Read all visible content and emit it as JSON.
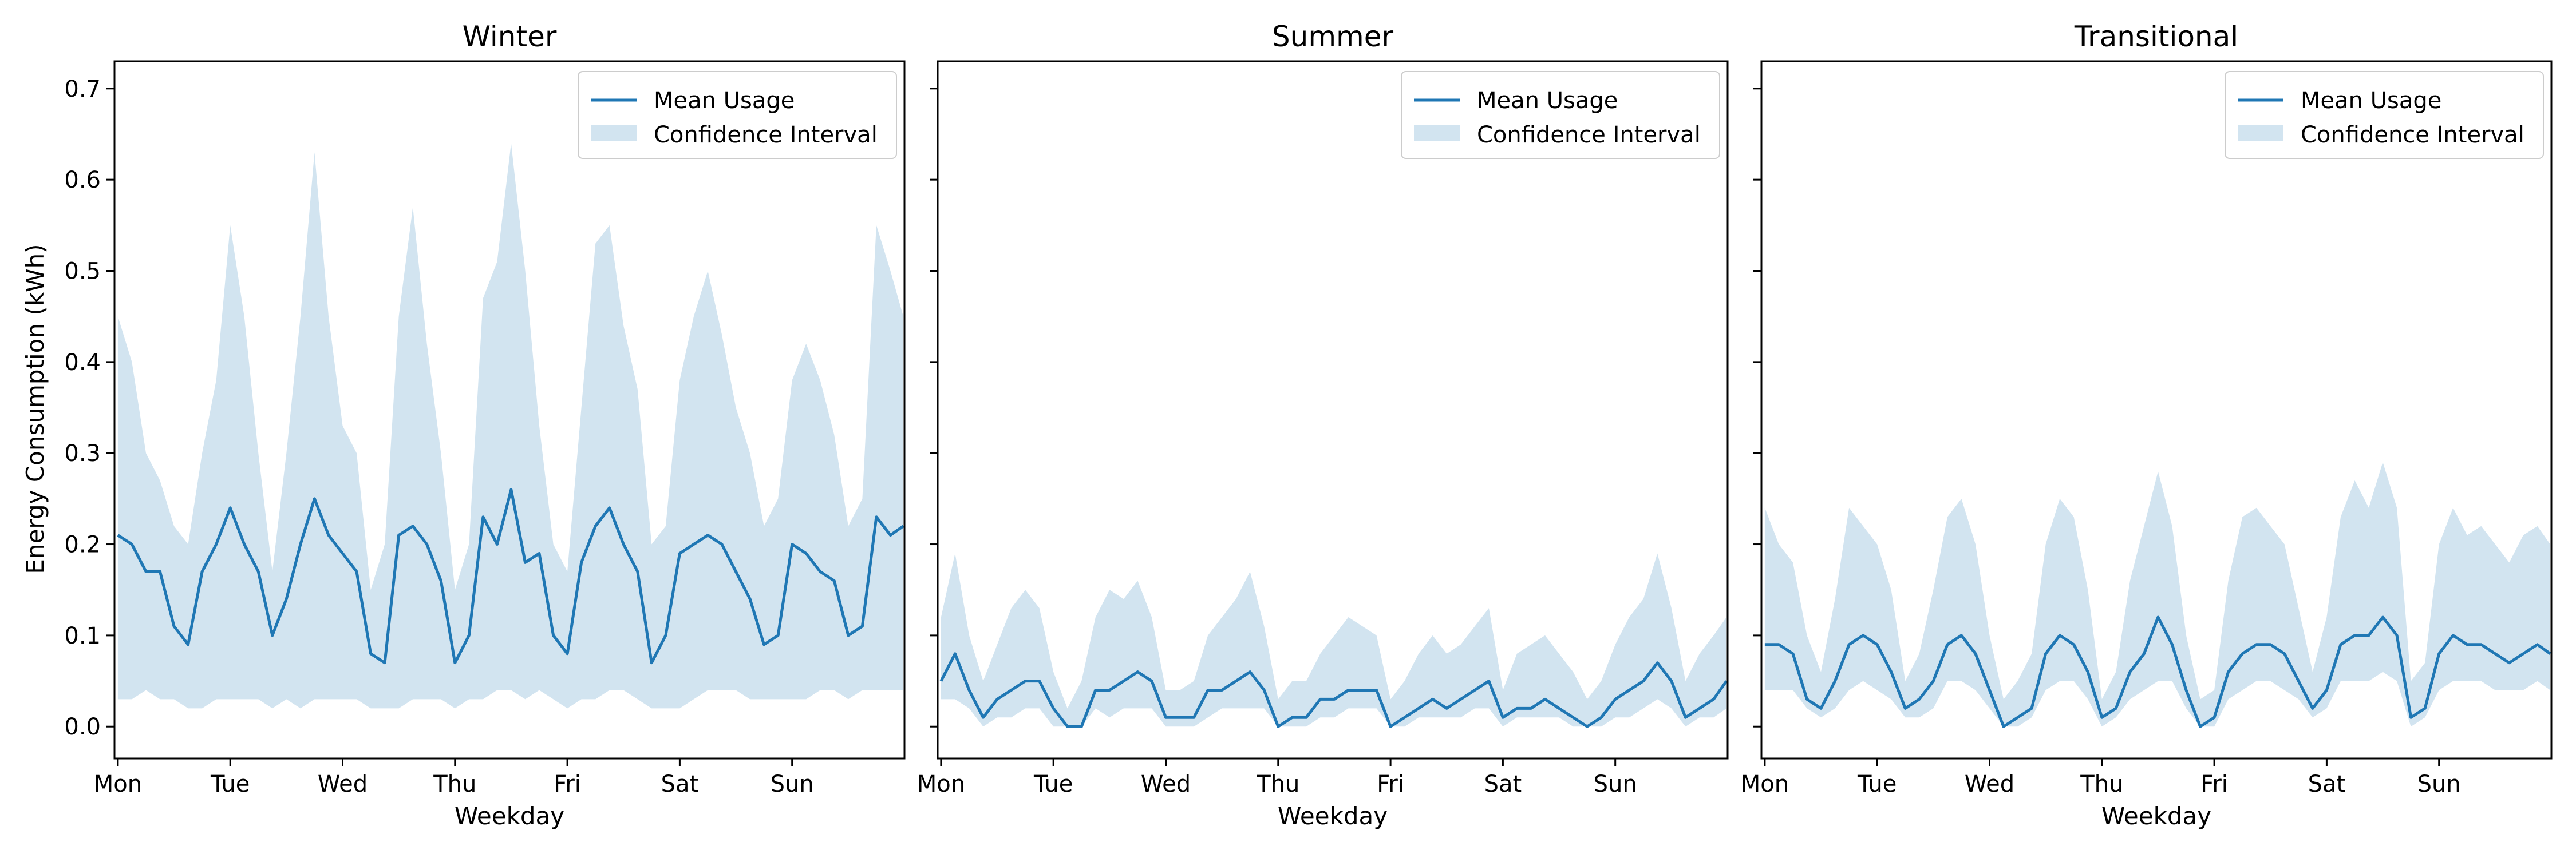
{
  "colors": {
    "line": "#1f77b4",
    "band": "#1f77b4",
    "band_opacity": 0.2,
    "axes": "#000000",
    "background": "#ffffff"
  },
  "shared_y_label": "Energy Consumption (kWh)",
  "chart_data": [
    {
      "type": "line",
      "title": "Winter",
      "xlabel": "Weekday",
      "ylabel": "Energy Consumption (kWh)",
      "xlim": [
        -0.03,
        7.0
      ],
      "ylim": [
        -0.035,
        0.73
      ],
      "yticks": [
        0.0,
        0.1,
        0.2,
        0.3,
        0.4,
        0.5,
        0.6,
        0.7
      ],
      "ytick_labels": [
        "0.0",
        "0.1",
        "0.2",
        "0.3",
        "0.4",
        "0.5",
        "0.6",
        "0.7"
      ],
      "xticks": [
        0,
        1,
        2,
        3,
        4,
        5,
        6
      ],
      "xtick_labels": [
        "Mon",
        "Tue",
        "Wed",
        "Thu",
        "Fri",
        "Sat",
        "Sun"
      ],
      "grid": false,
      "legend": {
        "placement": "upper-right",
        "entries": [
          "Mean Usage",
          "Confidence Interval"
        ]
      },
      "x": [
        0.0,
        0.125,
        0.25,
        0.375,
        0.5,
        0.625,
        0.75,
        0.875,
        1.0,
        1.125,
        1.25,
        1.375,
        1.5,
        1.625,
        1.75,
        1.875,
        2.0,
        2.125,
        2.25,
        2.375,
        2.5,
        2.625,
        2.75,
        2.875,
        3.0,
        3.125,
        3.25,
        3.375,
        3.5,
        3.625,
        3.75,
        3.875,
        4.0,
        4.125,
        4.25,
        4.375,
        4.5,
        4.625,
        4.75,
        4.875,
        5.0,
        5.125,
        5.25,
        5.375,
        5.5,
        5.625,
        5.75,
        5.875,
        6.0,
        6.125,
        6.25,
        6.375,
        6.5,
        6.625,
        6.75,
        6.875,
        6.99
      ],
      "series": [
        {
          "name": "Mean Usage",
          "values": [
            0.21,
            0.2,
            0.17,
            0.17,
            0.11,
            0.09,
            0.17,
            0.2,
            0.24,
            0.2,
            0.17,
            0.1,
            0.14,
            0.2,
            0.25,
            0.21,
            0.19,
            0.17,
            0.08,
            0.07,
            0.21,
            0.22,
            0.2,
            0.16,
            0.07,
            0.1,
            0.23,
            0.2,
            0.26,
            0.18,
            0.19,
            0.1,
            0.08,
            0.18,
            0.22,
            0.24,
            0.2,
            0.17,
            0.07,
            0.1,
            0.19,
            0.2,
            0.21,
            0.2,
            0.17,
            0.14,
            0.09,
            0.1,
            0.2,
            0.19,
            0.17,
            0.16,
            0.1,
            0.11,
            0.23,
            0.21,
            0.22
          ]
        },
        {
          "name": "Confidence Interval",
          "lower": [
            0.03,
            0.03,
            0.04,
            0.03,
            0.03,
            0.02,
            0.02,
            0.03,
            0.03,
            0.03,
            0.03,
            0.02,
            0.03,
            0.02,
            0.03,
            0.03,
            0.03,
            0.03,
            0.02,
            0.02,
            0.02,
            0.03,
            0.03,
            0.03,
            0.02,
            0.03,
            0.03,
            0.04,
            0.04,
            0.03,
            0.04,
            0.03,
            0.02,
            0.03,
            0.03,
            0.04,
            0.04,
            0.03,
            0.02,
            0.02,
            0.02,
            0.03,
            0.04,
            0.04,
            0.04,
            0.03,
            0.03,
            0.03,
            0.03,
            0.03,
            0.04,
            0.04,
            0.03,
            0.04,
            0.04,
            0.04,
            0.04
          ],
          "upper": [
            0.45,
            0.4,
            0.3,
            0.27,
            0.22,
            0.2,
            0.3,
            0.38,
            0.55,
            0.45,
            0.3,
            0.17,
            0.3,
            0.45,
            0.63,
            0.45,
            0.33,
            0.3,
            0.15,
            0.2,
            0.45,
            0.57,
            0.42,
            0.3,
            0.15,
            0.2,
            0.47,
            0.51,
            0.64,
            0.5,
            0.33,
            0.2,
            0.17,
            0.35,
            0.53,
            0.55,
            0.44,
            0.37,
            0.2,
            0.22,
            0.38,
            0.45,
            0.5,
            0.43,
            0.35,
            0.3,
            0.22,
            0.25,
            0.38,
            0.42,
            0.38,
            0.32,
            0.22,
            0.25,
            0.55,
            0.5,
            0.45
          ]
        }
      ]
    },
    {
      "type": "line",
      "title": "Summer",
      "xlabel": "Weekday",
      "ylabel": "",
      "xlim": [
        -0.03,
        7.0
      ],
      "ylim": [
        -0.035,
        0.73
      ],
      "yticks": [
        0.0,
        0.1,
        0.2,
        0.3,
        0.4,
        0.5,
        0.6,
        0.7
      ],
      "ytick_labels": [],
      "xticks": [
        0,
        1,
        2,
        3,
        4,
        5,
        6
      ],
      "xtick_labels": [
        "Mon",
        "Tue",
        "Wed",
        "Thu",
        "Fri",
        "Sat",
        "Sun"
      ],
      "grid": false,
      "legend": {
        "placement": "upper-right",
        "entries": [
          "Mean Usage",
          "Confidence Interval"
        ]
      },
      "x": [
        0.0,
        0.125,
        0.25,
        0.375,
        0.5,
        0.625,
        0.75,
        0.875,
        1.0,
        1.125,
        1.25,
        1.375,
        1.5,
        1.625,
        1.75,
        1.875,
        2.0,
        2.125,
        2.25,
        2.375,
        2.5,
        2.625,
        2.75,
        2.875,
        3.0,
        3.125,
        3.25,
        3.375,
        3.5,
        3.625,
        3.75,
        3.875,
        4.0,
        4.125,
        4.25,
        4.375,
        4.5,
        4.625,
        4.75,
        4.875,
        5.0,
        5.125,
        5.25,
        5.375,
        5.5,
        5.625,
        5.75,
        5.875,
        6.0,
        6.125,
        6.25,
        6.375,
        6.5,
        6.625,
        6.75,
        6.875,
        6.99
      ],
      "series": [
        {
          "name": "Mean Usage",
          "values": [
            0.05,
            0.08,
            0.04,
            0.01,
            0.03,
            0.04,
            0.05,
            0.05,
            0.02,
            0.0,
            0.0,
            0.04,
            0.04,
            0.05,
            0.06,
            0.05,
            0.01,
            0.01,
            0.01,
            0.04,
            0.04,
            0.05,
            0.06,
            0.04,
            0.0,
            0.01,
            0.01,
            0.03,
            0.03,
            0.04,
            0.04,
            0.04,
            0.0,
            0.01,
            0.02,
            0.03,
            0.02,
            0.03,
            0.04,
            0.05,
            0.01,
            0.02,
            0.02,
            0.03,
            0.02,
            0.01,
            0.0,
            0.01,
            0.03,
            0.04,
            0.05,
            0.07,
            0.05,
            0.01,
            0.02,
            0.03,
            0.05
          ]
        },
        {
          "name": "Confidence Interval",
          "lower": [
            0.03,
            0.03,
            0.02,
            0.0,
            0.01,
            0.01,
            0.02,
            0.02,
            0.0,
            0.0,
            0.0,
            0.02,
            0.01,
            0.02,
            0.02,
            0.02,
            0.0,
            0.0,
            0.0,
            0.01,
            0.02,
            0.02,
            0.02,
            0.02,
            0.0,
            0.0,
            0.0,
            0.01,
            0.01,
            0.02,
            0.02,
            0.02,
            0.0,
            0.0,
            0.01,
            0.01,
            0.01,
            0.01,
            0.02,
            0.02,
            0.0,
            0.01,
            0.01,
            0.01,
            0.01,
            0.0,
            0.0,
            0.0,
            0.01,
            0.01,
            0.02,
            0.03,
            0.02,
            0.0,
            0.01,
            0.01,
            0.02
          ],
          "upper": [
            0.12,
            0.19,
            0.1,
            0.05,
            0.09,
            0.13,
            0.15,
            0.13,
            0.06,
            0.02,
            0.05,
            0.12,
            0.15,
            0.14,
            0.16,
            0.12,
            0.04,
            0.04,
            0.05,
            0.1,
            0.12,
            0.14,
            0.17,
            0.11,
            0.03,
            0.05,
            0.05,
            0.08,
            0.1,
            0.12,
            0.11,
            0.1,
            0.03,
            0.05,
            0.08,
            0.1,
            0.08,
            0.09,
            0.11,
            0.13,
            0.04,
            0.08,
            0.09,
            0.1,
            0.08,
            0.06,
            0.03,
            0.05,
            0.09,
            0.12,
            0.14,
            0.19,
            0.13,
            0.05,
            0.08,
            0.1,
            0.12
          ]
        }
      ]
    },
    {
      "type": "line",
      "title": "Transitional",
      "xlabel": "Weekday",
      "ylabel": "",
      "xlim": [
        -0.03,
        7.0
      ],
      "ylim": [
        -0.035,
        0.73
      ],
      "yticks": [
        0.0,
        0.1,
        0.2,
        0.3,
        0.4,
        0.5,
        0.6,
        0.7
      ],
      "ytick_labels": [],
      "xticks": [
        0,
        1,
        2,
        3,
        4,
        5,
        6
      ],
      "xtick_labels": [
        "Mon",
        "Tue",
        "Wed",
        "Thu",
        "Fri",
        "Sat",
        "Sun"
      ],
      "grid": false,
      "legend": {
        "placement": "upper-right",
        "entries": [
          "Mean Usage",
          "Confidence Interval"
        ]
      },
      "x": [
        0.0,
        0.125,
        0.25,
        0.375,
        0.5,
        0.625,
        0.75,
        0.875,
        1.0,
        1.125,
        1.25,
        1.375,
        1.5,
        1.625,
        1.75,
        1.875,
        2.0,
        2.125,
        2.25,
        2.375,
        2.5,
        2.625,
        2.75,
        2.875,
        3.0,
        3.125,
        3.25,
        3.375,
        3.5,
        3.625,
        3.75,
        3.875,
        4.0,
        4.125,
        4.25,
        4.375,
        4.5,
        4.625,
        4.75,
        4.875,
        5.0,
        5.125,
        5.25,
        5.375,
        5.5,
        5.625,
        5.75,
        5.875,
        6.0,
        6.125,
        6.25,
        6.375,
        6.5,
        6.625,
        6.75,
        6.875,
        6.99
      ],
      "series": [
        {
          "name": "Mean Usage",
          "values": [
            0.09,
            0.09,
            0.08,
            0.03,
            0.02,
            0.05,
            0.09,
            0.1,
            0.09,
            0.06,
            0.02,
            0.03,
            0.05,
            0.09,
            0.1,
            0.08,
            0.04,
            0.0,
            0.01,
            0.02,
            0.08,
            0.1,
            0.09,
            0.06,
            0.01,
            0.02,
            0.06,
            0.08,
            0.12,
            0.09,
            0.04,
            0.0,
            0.01,
            0.06,
            0.08,
            0.09,
            0.09,
            0.08,
            0.05,
            0.02,
            0.04,
            0.09,
            0.1,
            0.1,
            0.12,
            0.1,
            0.01,
            0.02,
            0.08,
            0.1,
            0.09,
            0.09,
            0.08,
            0.07,
            0.08,
            0.09,
            0.08
          ]
        },
        {
          "name": "Confidence Interval",
          "lower": [
            0.04,
            0.04,
            0.04,
            0.02,
            0.01,
            0.02,
            0.04,
            0.05,
            0.04,
            0.03,
            0.01,
            0.01,
            0.02,
            0.05,
            0.05,
            0.04,
            0.02,
            0.0,
            0.0,
            0.01,
            0.04,
            0.05,
            0.05,
            0.03,
            0.0,
            0.01,
            0.03,
            0.04,
            0.05,
            0.05,
            0.02,
            0.0,
            0.0,
            0.03,
            0.04,
            0.05,
            0.05,
            0.04,
            0.03,
            0.01,
            0.02,
            0.05,
            0.05,
            0.05,
            0.06,
            0.05,
            0.0,
            0.01,
            0.04,
            0.05,
            0.05,
            0.05,
            0.04,
            0.04,
            0.04,
            0.05,
            0.04
          ],
          "upper": [
            0.24,
            0.2,
            0.18,
            0.1,
            0.06,
            0.14,
            0.24,
            0.22,
            0.2,
            0.15,
            0.05,
            0.08,
            0.15,
            0.23,
            0.25,
            0.2,
            0.1,
            0.03,
            0.05,
            0.08,
            0.2,
            0.25,
            0.23,
            0.15,
            0.03,
            0.06,
            0.16,
            0.22,
            0.28,
            0.22,
            0.1,
            0.03,
            0.04,
            0.16,
            0.23,
            0.24,
            0.22,
            0.2,
            0.13,
            0.06,
            0.12,
            0.23,
            0.27,
            0.24,
            0.29,
            0.24,
            0.05,
            0.07,
            0.2,
            0.24,
            0.21,
            0.22,
            0.2,
            0.18,
            0.21,
            0.22,
            0.2
          ]
        }
      ]
    }
  ]
}
